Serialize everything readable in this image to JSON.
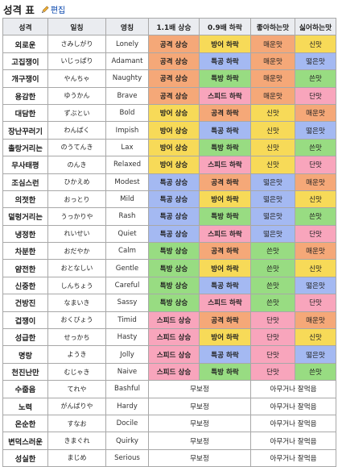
{
  "page": {
    "title": "성격 표",
    "edit_label": "편집"
  },
  "table": {
    "headers": [
      "성격",
      "일칭",
      "영칭",
      "1.1배 상승",
      "0.9배 하락",
      "좋아하는맛",
      "싫어하는맛"
    ],
    "rows": [
      {
        "ko": "외로운",
        "jp": "さみしがり",
        "en": "Lonely",
        "up": "공격 상승",
        "down": "방어 하락",
        "like": "매운맛",
        "dislike": "신맛"
      },
      {
        "ko": "고집쟁이",
        "jp": "いじっぱり",
        "en": "Adamant",
        "up": "공격 상승",
        "down": "특공 하락",
        "like": "매운맛",
        "dislike": "떫은맛"
      },
      {
        "ko": "개구쟁이",
        "jp": "やんちゃ",
        "en": "Naughty",
        "up": "공격 상승",
        "down": "특방 하락",
        "like": "매운맛",
        "dislike": "쓴맛"
      },
      {
        "ko": "용감한",
        "jp": "ゆうかん",
        "en": "Brave",
        "up": "공격 상승",
        "down": "스피드 하락",
        "like": "매운맛",
        "dislike": "단맛"
      },
      {
        "ko": "대담한",
        "jp": "ずぶとい",
        "en": "Bold",
        "up": "방어 상승",
        "down": "공격 하락",
        "like": "신맛",
        "dislike": "매운맛"
      },
      {
        "ko": "장난꾸러기",
        "jp": "わんぱく",
        "en": "Impish",
        "up": "방어 상승",
        "down": "특공 하락",
        "like": "신맛",
        "dislike": "떫은맛"
      },
      {
        "ko": "촐랑거리는",
        "jp": "のうてんき",
        "en": "Lax",
        "up": "방어 상승",
        "down": "특방 하락",
        "like": "신맛",
        "dislike": "쓴맛"
      },
      {
        "ko": "무사태평",
        "jp": "のんき",
        "en": "Relaxed",
        "up": "방어 상승",
        "down": "스피드 하락",
        "like": "신맛",
        "dislike": "단맛"
      },
      {
        "ko": "조심스런",
        "jp": "ひかえめ",
        "en": "Modest",
        "up": "특공 상승",
        "down": "공격 하락",
        "like": "떫은맛",
        "dislike": "매운맛"
      },
      {
        "ko": "의젓한",
        "jp": "おっとり",
        "en": "Mild",
        "up": "특공 상승",
        "down": "방어 하락",
        "like": "떫은맛",
        "dislike": "신맛"
      },
      {
        "ko": "덜렁거리는",
        "jp": "うっかりや",
        "en": "Rash",
        "up": "특공 상승",
        "down": "특방 하락",
        "like": "떫은맛",
        "dislike": "쓴맛"
      },
      {
        "ko": "냉정한",
        "jp": "れいせい",
        "en": "Quiet",
        "up": "특공 상승",
        "down": "스피드 하락",
        "like": "떫은맛",
        "dislike": "단맛"
      },
      {
        "ko": "차분한",
        "jp": "おだやか",
        "en": "Calm",
        "up": "특방 상승",
        "down": "공격 하락",
        "like": "쓴맛",
        "dislike": "매운맛"
      },
      {
        "ko": "얌전한",
        "jp": "おとなしい",
        "en": "Gentle",
        "up": "특방 상승",
        "down": "방어 하락",
        "like": "쓴맛",
        "dislike": "신맛"
      },
      {
        "ko": "신중한",
        "jp": "しんちょう",
        "en": "Careful",
        "up": "특방 상승",
        "down": "특공 하락",
        "like": "쓴맛",
        "dislike": "떫은맛"
      },
      {
        "ko": "건방진",
        "jp": "なまいき",
        "en": "Sassy",
        "up": "특방 상승",
        "down": "스피드 하락",
        "like": "쓴맛",
        "dislike": "단맛"
      },
      {
        "ko": "겁쟁이",
        "jp": "おくびょう",
        "en": "Timid",
        "up": "스피드 상승",
        "down": "공격 하락",
        "like": "단맛",
        "dislike": "매운맛"
      },
      {
        "ko": "성급한",
        "jp": "せっかち",
        "en": "Hasty",
        "up": "스피드 상승",
        "down": "방어 하락",
        "like": "단맛",
        "dislike": "신맛"
      },
      {
        "ko": "명랑",
        "jp": "ようき",
        "en": "Jolly",
        "up": "스피드 상승",
        "down": "특공 하락",
        "like": "단맛",
        "dislike": "떫은맛"
      },
      {
        "ko": "천진난만",
        "jp": "むじゃき",
        "en": "Naive",
        "up": "스피드 상승",
        "down": "특방 하락",
        "like": "단맛",
        "dislike": "쓴맛"
      },
      {
        "ko": "수줍음",
        "jp": "てれや",
        "en": "Bashful",
        "neutral_stat": "무보정",
        "neutral_taste": "아무거나 잘먹음"
      },
      {
        "ko": "노력",
        "jp": "がんばりや",
        "en": "Hardy",
        "neutral_stat": "무보정",
        "neutral_taste": "아무거나 잘먹음"
      },
      {
        "ko": "온순한",
        "jp": "すなお",
        "en": "Docile",
        "neutral_stat": "무보정",
        "neutral_taste": "아무거나 잘먹음"
      },
      {
        "ko": "변덕스러운",
        "jp": "きまぐれ",
        "en": "Quirky",
        "neutral_stat": "무보정",
        "neutral_taste": "아무거나 잘먹음"
      },
      {
        "ko": "성실한",
        "jp": "まじめ",
        "en": "Serious",
        "neutral_stat": "무보정",
        "neutral_taste": "아무거나 잘먹음"
      }
    ]
  },
  "colors": {
    "공격": "#f5a878",
    "방어": "#f7da58",
    "특공": "#a4b9f2",
    "특방": "#98dc82",
    "스피드": "#f8a5bc",
    "매운맛": "#f5a878",
    "신맛": "#f7da58",
    "떫은맛": "#a4b9f2",
    "쓴맛": "#98dc82",
    "단맛": "#f8a5bc"
  }
}
